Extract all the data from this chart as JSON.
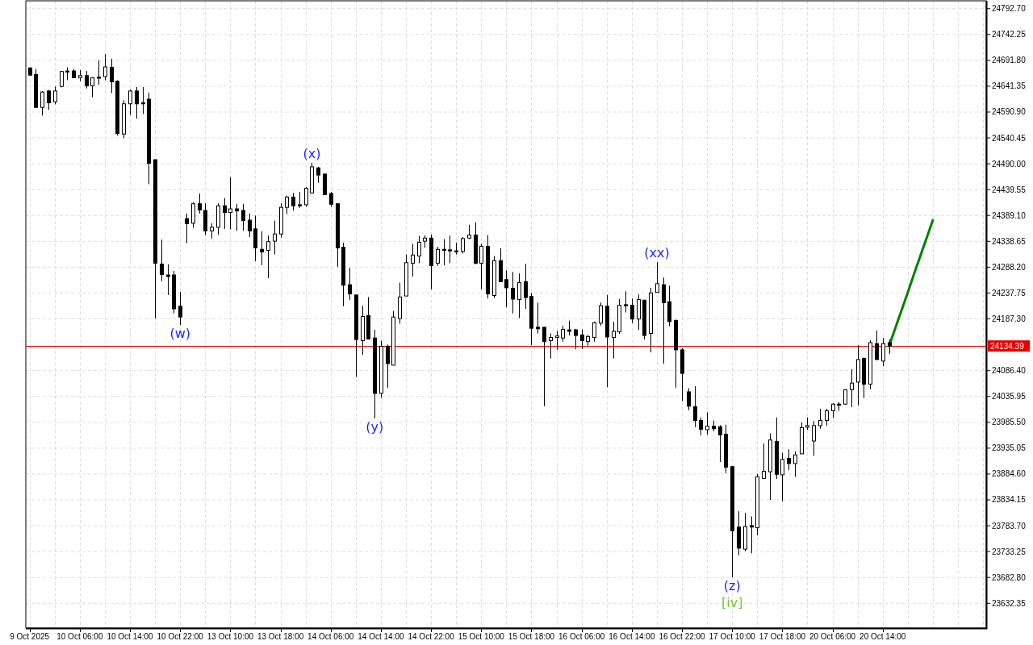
{
  "chart_data": {
    "type": "candlestick",
    "categories": [
      "9 Oct 2025",
      null,
      null,
      null,
      null,
      null,
      null,
      null,
      "10 Oct 06:00",
      null,
      null,
      null,
      null,
      null,
      null,
      null,
      "10 Oct 14:00",
      null,
      null,
      null,
      null,
      null,
      null,
      null,
      "10 Oct 22:00",
      null,
      null,
      null,
      null,
      null,
      null,
      null,
      "13 Oct 10:00",
      null,
      null,
      null,
      null,
      null,
      null,
      null,
      "13 Oct 18:00",
      null,
      null,
      null,
      null,
      null,
      null,
      null,
      "14 Oct 06:00",
      null,
      null,
      null,
      null,
      null,
      null,
      null,
      "14 Oct 14:00",
      null,
      null,
      null,
      null,
      null,
      null,
      null,
      "14 Oct 22:00",
      null,
      null,
      null,
      null,
      null,
      null,
      null,
      "15 Oct 10:00",
      null,
      null,
      null,
      null,
      null,
      null,
      null,
      "15 Oct 18:00",
      null,
      null,
      null,
      null,
      null,
      null,
      null,
      "16 Oct 06:00",
      null,
      null,
      null,
      null,
      null,
      null,
      null,
      "16 Oct 14:00",
      null,
      null,
      null,
      null,
      null,
      null,
      null,
      "16 Oct 22:00",
      null,
      null,
      null,
      null,
      null,
      null,
      null,
      "17 Oct 10:00",
      null,
      null,
      null,
      null,
      null,
      null,
      null,
      "17 Oct 18:00",
      null,
      null,
      null,
      null,
      null,
      null,
      null,
      "20 Oct 06:00",
      null,
      null,
      null,
      null,
      null,
      null,
      null,
      "20 Oct 14:00",
      null,
      null,
      null,
      null,
      null,
      null,
      null,
      null,
      null,
      null,
      null,
      null,
      null,
      null,
      null,
      null
    ],
    "ohlc": [
      [
        24677,
        24678,
        24662,
        24663
      ],
      [
        24664,
        24675,
        24599,
        24600
      ],
      [
        24600,
        24632,
        24584,
        24630
      ],
      [
        24632,
        24634,
        24595,
        24609
      ],
      [
        24611,
        24641,
        24606,
        24632
      ],
      [
        24641,
        24671,
        24639,
        24670
      ],
      [
        24671,
        24678,
        24653,
        24669
      ],
      [
        24671,
        24675,
        24657,
        24658
      ],
      [
        24658,
        24673,
        24651,
        24662
      ],
      [
        24662,
        24671,
        24637,
        24642
      ],
      [
        24642,
        24659,
        24620,
        24658
      ],
      [
        24659,
        24692,
        24644,
        24657
      ],
      [
        24660,
        24704,
        24653,
        24679
      ],
      [
        24678,
        24695,
        24628,
        24650
      ],
      [
        24651,
        24653,
        24545,
        24549
      ],
      [
        24548,
        24614,
        24540,
        24607
      ],
      [
        24607,
        24635,
        24585,
        24632
      ],
      [
        24632,
        24640,
        24578,
        24607
      ],
      [
        24609,
        24640,
        24587,
        24607
      ],
      [
        24616,
        24629,
        24450,
        24491
      ],
      [
        24498,
        24498,
        24188,
        24296
      ],
      [
        24294,
        24342,
        24261,
        24274
      ],
      [
        24273,
        24294,
        24234,
        24270
      ],
      [
        24273,
        24281,
        24198,
        24207
      ],
      [
        24212,
        24240,
        24175,
        24191
      ],
      [
        24383,
        24393,
        24335,
        24373
      ],
      [
        24374,
        24415,
        24365,
        24412
      ],
      [
        24412,
        24432,
        24393,
        24400
      ],
      [
        24399,
        24413,
        24351,
        24359
      ],
      [
        24359,
        24374,
        24344,
        24366
      ],
      [
        24366,
        24413,
        24351,
        24408
      ],
      [
        24408,
        24423,
        24363,
        24395
      ],
      [
        24395,
        24464,
        24362,
        24402
      ],
      [
        24402,
        24412,
        24359,
        24398
      ],
      [
        24399,
        24412,
        24359,
        24379
      ],
      [
        24380,
        24393,
        24347,
        24359
      ],
      [
        24363,
        24389,
        24300,
        24326
      ],
      [
        24323,
        24358,
        24292,
        24318
      ],
      [
        24321,
        24350,
        24267,
        24338
      ],
      [
        24339,
        24379,
        24313,
        24353
      ],
      [
        24353,
        24413,
        24346,
        24405
      ],
      [
        24405,
        24428,
        24392,
        24425
      ],
      [
        24425,
        24433,
        24399,
        24408
      ],
      [
        24410,
        24435,
        24404,
        24408
      ],
      [
        24410,
        24445,
        24406,
        24442
      ],
      [
        24433,
        24492,
        24432,
        24484
      ],
      [
        24482,
        24484,
        24453,
        24468
      ],
      [
        24470,
        24470,
        24430,
        24430
      ],
      [
        24432,
        24435,
        24406,
        24411
      ],
      [
        24412,
        24412,
        24289,
        24326
      ],
      [
        24327,
        24336,
        24212,
        24253
      ],
      [
        24254,
        24287,
        24224,
        24236
      ],
      [
        24234,
        24234,
        24074,
        24147
      ],
      [
        24145,
        24213,
        24117,
        24192
      ],
      [
        24194,
        24230,
        24147,
        24148
      ],
      [
        24150,
        24166,
        23993,
        24042
      ],
      [
        24042,
        24145,
        24033,
        24134
      ],
      [
        24134,
        24137,
        24053,
        24100
      ],
      [
        24097,
        24203,
        24097,
        24191
      ],
      [
        24188,
        24258,
        24178,
        24230
      ],
      [
        24232,
        24313,
        24232,
        24297
      ],
      [
        24296,
        24334,
        24270,
        24312
      ],
      [
        24310,
        24349,
        24296,
        24337
      ],
      [
        24339,
        24350,
        24326,
        24345
      ],
      [
        24345,
        24352,
        24245,
        24291
      ],
      [
        24296,
        24328,
        24291,
        24323
      ],
      [
        24323,
        24343,
        24292,
        24321
      ],
      [
        24322,
        24350,
        24296,
        24320
      ],
      [
        24320,
        24336,
        24313,
        24318
      ],
      [
        24319,
        24347,
        24315,
        24344
      ],
      [
        24345,
        24371,
        24343,
        24351
      ],
      [
        24351,
        24376,
        24294,
        24296
      ],
      [
        24296,
        24334,
        24245,
        24329
      ],
      [
        24329,
        24351,
        24227,
        24236
      ],
      [
        24233,
        24310,
        24228,
        24301
      ],
      [
        24301,
        24325,
        24260,
        24260
      ],
      [
        24264,
        24282,
        24210,
        24248
      ],
      [
        24247,
        24279,
        24198,
        24226
      ],
      [
        24225,
        24276,
        24189,
        24258
      ],
      [
        24260,
        24295,
        24207,
        24229
      ],
      [
        24231,
        24238,
        24136,
        24169
      ],
      [
        24171,
        24219,
        24159,
        24168
      ],
      [
        24171,
        24171,
        24017,
        24143
      ],
      [
        24145,
        24159,
        24110,
        24151
      ],
      [
        24151,
        24164,
        24127,
        24154
      ],
      [
        24150,
        24174,
        24143,
        24167
      ],
      [
        24166,
        24184,
        24155,
        24163
      ],
      [
        24166,
        24168,
        24128,
        24155
      ],
      [
        24156,
        24167,
        24128,
        24145
      ],
      [
        24143,
        24156,
        24135,
        24153
      ],
      [
        24151,
        24182,
        24143,
        24180
      ],
      [
        24179,
        24219,
        24174,
        24213
      ],
      [
        24212,
        24234,
        24054,
        24152
      ],
      [
        24151,
        24182,
        24110,
        24163
      ],
      [
        24162,
        24226,
        24158,
        24214
      ],
      [
        24215,
        24241,
        24200,
        24213
      ],
      [
        24214,
        24227,
        24179,
        24187
      ],
      [
        24187,
        24235,
        24166,
        24225
      ],
      [
        24224,
        24224,
        24147,
        24155
      ],
      [
        24159,
        24248,
        24122,
        24238
      ],
      [
        24239,
        24298,
        24239,
        24256
      ],
      [
        24254,
        24268,
        24100,
        24219
      ],
      [
        24221,
        24252,
        24173,
        24182
      ],
      [
        24184,
        24186,
        24053,
        24127
      ],
      [
        24127,
        24130,
        24027,
        24081
      ],
      [
        24045,
        24052,
        24009,
        24017
      ],
      [
        24016,
        24056,
        23976,
        23989
      ],
      [
        23989,
        23995,
        23960,
        23972
      ],
      [
        23971,
        24005,
        23961,
        23978
      ],
      [
        23978,
        23989,
        23968,
        23973
      ],
      [
        23977,
        23980,
        23908,
        23961
      ],
      [
        23962,
        23981,
        23886,
        23898
      ],
      [
        23899,
        23899,
        23683,
        23774
      ],
      [
        23781,
        23812,
        23726,
        23740
      ],
      [
        23738,
        23809,
        23734,
        23782
      ],
      [
        23784,
        23802,
        23730,
        23781
      ],
      [
        23780,
        23885,
        23765,
        23879
      ],
      [
        23876,
        23944,
        23875,
        23890
      ],
      [
        23889,
        23964,
        23834,
        23951
      ],
      [
        23948,
        23995,
        23875,
        23884
      ],
      [
        23883,
        23926,
        23831,
        23913
      ],
      [
        23915,
        23933,
        23892,
        23905
      ],
      [
        23905,
        23929,
        23879,
        23922
      ],
      [
        23924,
        23985,
        23924,
        23975
      ],
      [
        23976,
        23995,
        23971,
        23979
      ],
      [
        23949,
        23988,
        23920,
        23979
      ],
      [
        23979,
        24012,
        23973,
        23989
      ],
      [
        23989,
        24012,
        23979,
        24008
      ],
      [
        24008,
        24023,
        23994,
        24021
      ],
      [
        24021,
        24025,
        24008,
        24019
      ],
      [
        24021,
        24050,
        24020,
        24049
      ],
      [
        24049,
        24089,
        24015,
        24062
      ],
      [
        24064,
        24136,
        24018,
        24108
      ],
      [
        24110,
        24112,
        24033,
        24060
      ],
      [
        24060,
        24146,
        24050,
        24141
      ],
      [
        24139,
        24165,
        24107,
        24108
      ],
      [
        24105,
        24150,
        24095,
        24139
      ],
      [
        24141,
        24147,
        24119,
        24134.39
      ],
      null,
      null,
      null,
      null,
      null,
      null,
      null,
      null,
      null,
      null,
      null,
      null,
      null,
      null,
      null
    ],
    "series": [
      {
        "type": "line",
        "color": "#008000",
        "values": [
          null,
          null,
          null,
          null,
          null,
          null,
          null,
          null,
          null,
          null,
          null,
          null,
          null,
          null,
          null,
          null,
          null,
          null,
          null,
          null,
          null,
          null,
          null,
          null,
          null,
          null,
          null,
          null,
          null,
          null,
          null,
          null,
          null,
          null,
          null,
          null,
          null,
          null,
          null,
          null,
          null,
          null,
          null,
          null,
          null,
          null,
          null,
          null,
          null,
          null,
          null,
          null,
          null,
          null,
          null,
          null,
          null,
          null,
          null,
          null,
          null,
          null,
          null,
          null,
          null,
          null,
          null,
          null,
          null,
          null,
          null,
          null,
          null,
          null,
          null,
          null,
          null,
          null,
          null,
          null,
          null,
          null,
          null,
          null,
          null,
          null,
          null,
          null,
          null,
          null,
          null,
          null,
          null,
          null,
          null,
          null,
          null,
          null,
          null,
          null,
          null,
          null,
          null,
          null,
          null,
          null,
          null,
          null,
          null,
          null,
          null,
          null,
          null,
          null,
          null,
          null,
          null,
          null,
          null,
          null,
          null,
          null,
          null,
          null,
          null,
          null,
          null,
          null,
          null,
          null,
          null,
          null,
          null,
          null,
          null,
          null,
          null,
          24134,
          24169,
          24204,
          24239,
          24275,
          24310,
          24345,
          24380,
          null,
          null,
          null,
          null,
          null,
          null,
          null,
          null
        ]
      }
    ],
    "ylim": [
      23584,
      24808
    ],
    "yticks": [
      {
        "value": 24792.7,
        "label": "24792.70"
      },
      {
        "value": 24742.25,
        "label": "24742.25"
      },
      {
        "value": 24691.8,
        "label": "24691.80"
      },
      {
        "value": 24641.35,
        "label": "24641.35"
      },
      {
        "value": 24590.9,
        "label": "24590.90"
      },
      {
        "value": 24540.45,
        "label": "24540.45"
      },
      {
        "value": 24490,
        "label": "24490.00"
      },
      {
        "value": 24439.55,
        "label": "24439.55"
      },
      {
        "value": 24389.1,
        "label": "24389.10"
      },
      {
        "value": 24338.65,
        "label": "24338.65"
      },
      {
        "value": 24288.2,
        "label": "24288.20"
      },
      {
        "value": 24237.75,
        "label": "24237.75"
      },
      {
        "value": 24187.3,
        "label": "24187.30"
      },
      {
        "value": 24086.4,
        "label": "24086.40"
      },
      {
        "value": 24035.95,
        "label": "24035.95"
      },
      {
        "value": 23985.5,
        "label": "23985.50"
      },
      {
        "value": 23935.05,
        "label": "23935.05"
      },
      {
        "value": 23884.6,
        "label": "23884.60"
      },
      {
        "value": 23834.15,
        "label": "23834.15"
      },
      {
        "value": 23783.7,
        "label": "23783.70"
      },
      {
        "value": 23733.25,
        "label": "23733.25"
      },
      {
        "value": 23682.8,
        "label": "23682.80"
      },
      {
        "value": 23632.35,
        "label": "23632.35"
      }
    ],
    "grid": true,
    "ref_lines": [
      {
        "axis": "y",
        "value": 24134.39,
        "label": "24134.39",
        "color": "#e60000"
      }
    ],
    "annotations": [
      {
        "text": "(w)",
        "y": 24175
      },
      {
        "text": "(x)",
        "y": 24492
      },
      {
        "text": "(y)",
        "y": 23993
      },
      {
        "text": "(xx)",
        "y": 24298
      },
      {
        "text": "(z)",
        "y": 23683
      },
      {
        "text": "[iv]",
        "y": 23683
      }
    ]
  }
}
